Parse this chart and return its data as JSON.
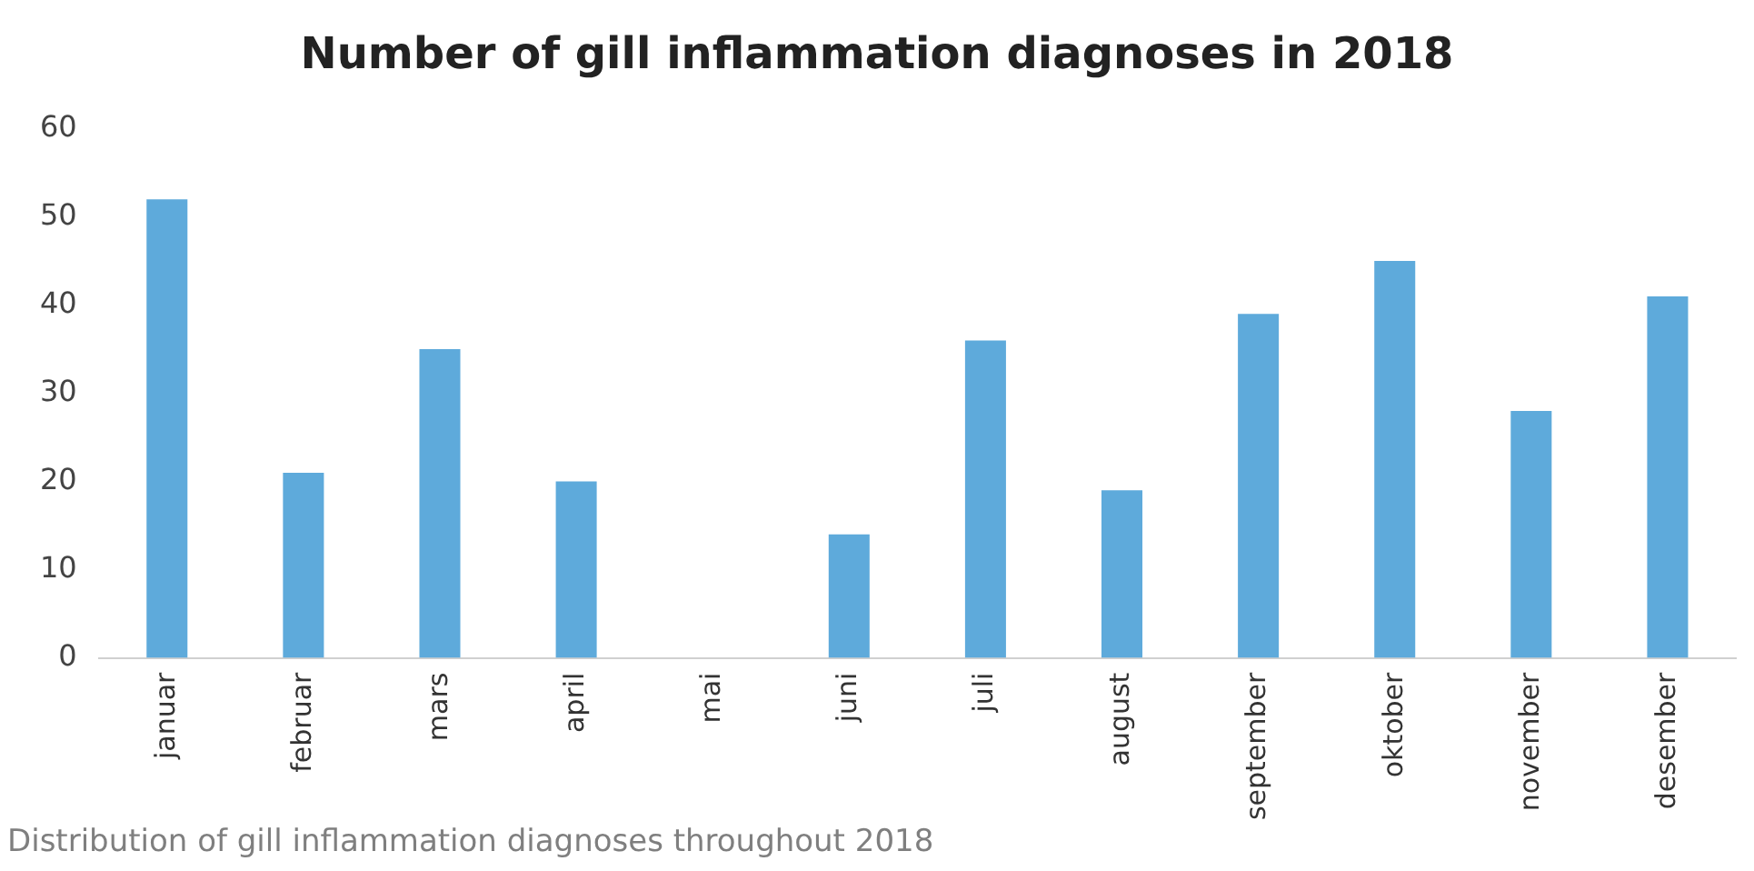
{
  "chart_data": {
    "type": "bar",
    "title": "Number of gill inflammation diagnoses in 2018",
    "categories": [
      "januar",
      "februar",
      "mars",
      "april",
      "mai",
      "juni",
      "juli",
      "august",
      "september",
      "oktober",
      "november",
      "desember"
    ],
    "values": [
      52,
      21,
      35,
      20,
      0,
      14,
      36,
      19,
      39,
      45,
      28,
      41
    ],
    "color": "#5eaadb",
    "ylim": [
      0,
      60
    ],
    "yticks": [
      0,
      10,
      20,
      30,
      40,
      50,
      60
    ],
    "grid": false,
    "legend": false,
    "annotations": [
      "Distribution of gill inflammation diagnoses throughout 2018"
    ]
  }
}
